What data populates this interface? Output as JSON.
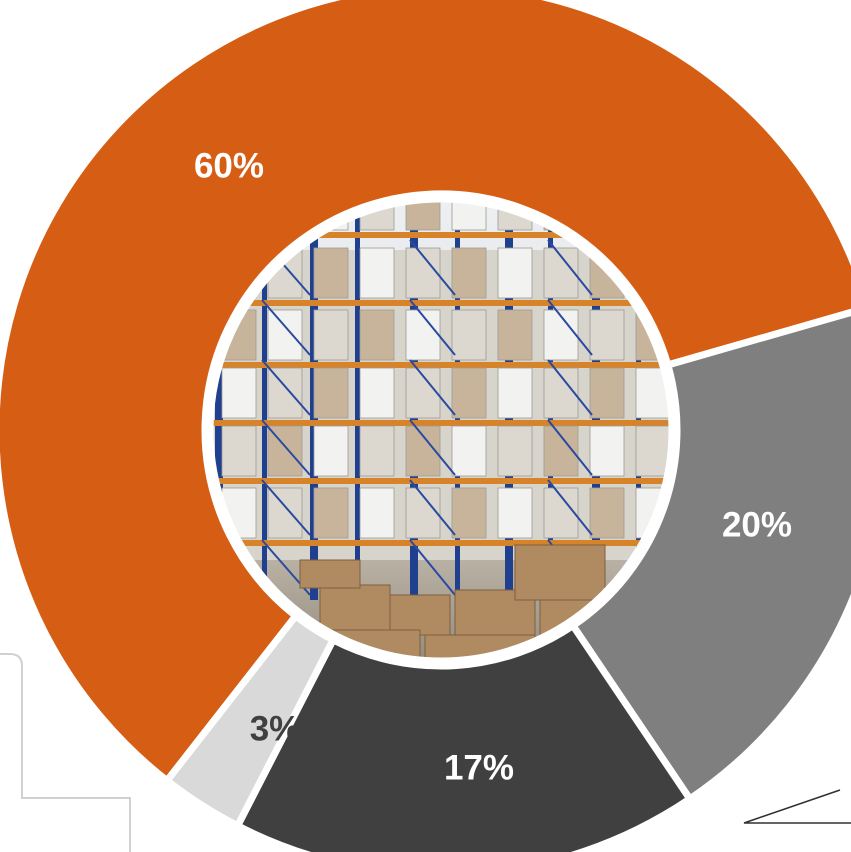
{
  "chart_data": {
    "type": "pie",
    "style": "donut with photo in center",
    "slices": [
      {
        "label": "60%",
        "value": 60,
        "color": "#D55E14",
        "label_color": "#FFFFFF"
      },
      {
        "label": "20%",
        "value": 20,
        "color": "#7F7F7F",
        "label_color": "#FFFFFF"
      },
      {
        "label": "17%",
        "value": 17,
        "color": "#404040",
        "label_color": "#FFFFFF"
      },
      {
        "label": "3%",
        "value": 3,
        "color": "#D9D9D9",
        "label_color": "#404040"
      }
    ],
    "center_image": "warehouse-photo"
  },
  "colors": {
    "background": "#FFFFFF",
    "separator": "#FFFFFF",
    "decor_line": "#D0D0D0"
  }
}
